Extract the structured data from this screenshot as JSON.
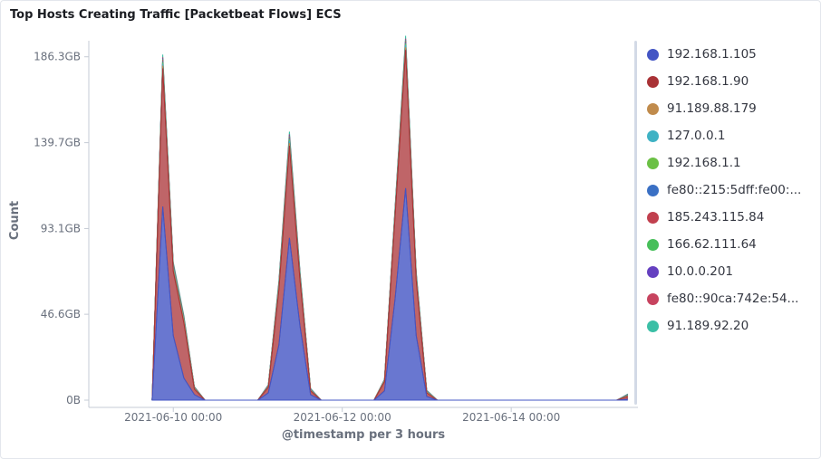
{
  "panel": {
    "title": "Top Hosts Creating Traffic [Packetbeat Flows] ECS"
  },
  "chart_data": {
    "type": "area",
    "stacked": true,
    "title": "Top Hosts Creating Traffic [Packetbeat Flows] ECS",
    "xlabel": "@timestamp per 3 hours",
    "ylabel": "Count",
    "x_axis": {
      "type": "time",
      "range": [
        "2021-06-09 00:00",
        "2021-06-15 12:00"
      ],
      "ticks": [
        {
          "value": "2021-06-10 00:00",
          "label": "2021-06-10 00:00"
        },
        {
          "value": "2021-06-12 00:00",
          "label": "2021-06-12 00:00"
        },
        {
          "value": "2021-06-14 00:00",
          "label": "2021-06-14 00:00"
        }
      ]
    },
    "y_axis": {
      "unit": "GB",
      "ylim": [
        0,
        195
      ],
      "ticks": [
        {
          "value": 0,
          "label": "0B"
        },
        {
          "value": 46.6,
          "label": "46.6GB"
        },
        {
          "value": 93.1,
          "label": "93.1GB"
        },
        {
          "value": 139.7,
          "label": "139.7GB"
        },
        {
          "value": 186.3,
          "label": "186.3GB"
        }
      ]
    },
    "grid": false,
    "legend_position": "right",
    "x": [
      "2021-06-09 18:00",
      "2021-06-09 21:00",
      "2021-06-10 00:00",
      "2021-06-10 03:00",
      "2021-06-10 06:00",
      "2021-06-10 09:00",
      "2021-06-10 12:00",
      "2021-06-10 15:00",
      "2021-06-10 18:00",
      "2021-06-10 21:00",
      "2021-06-11 00:00",
      "2021-06-11 03:00",
      "2021-06-11 06:00",
      "2021-06-11 09:00",
      "2021-06-11 12:00",
      "2021-06-11 15:00",
      "2021-06-11 18:00",
      "2021-06-11 21:00",
      "2021-06-12 00:00",
      "2021-06-12 03:00",
      "2021-06-12 06:00",
      "2021-06-12 09:00",
      "2021-06-12 12:00",
      "2021-06-12 15:00",
      "2021-06-12 18:00",
      "2021-06-12 21:00",
      "2021-06-13 00:00",
      "2021-06-13 03:00",
      "2021-06-13 06:00",
      "2021-06-13 09:00",
      "2021-06-13 12:00",
      "2021-06-13 15:00",
      "2021-06-13 18:00",
      "2021-06-13 21:00",
      "2021-06-14 00:00",
      "2021-06-14 03:00",
      "2021-06-14 06:00",
      "2021-06-14 09:00",
      "2021-06-14 12:00",
      "2021-06-14 15:00",
      "2021-06-14 18:00",
      "2021-06-14 21:00",
      "2021-06-15 00:00",
      "2021-06-15 03:00",
      "2021-06-15 06:00",
      "2021-06-15 09:00"
    ],
    "series": [
      {
        "name": "192.168.1.105",
        "color": "#4355c4",
        "values": [
          0,
          105,
          35,
          12,
          3,
          0,
          0,
          0,
          0,
          0,
          0,
          4,
          30,
          88,
          40,
          3,
          0,
          0,
          0,
          0,
          0,
          0,
          5,
          55,
          115,
          35,
          2,
          0,
          0,
          0,
          0,
          0,
          0,
          0,
          0,
          0,
          0,
          0,
          0,
          0,
          0,
          0,
          0,
          0,
          0,
          0.5
        ]
      },
      {
        "name": "192.168.1.90",
        "color": "#a93236",
        "values": [
          0,
          75,
          35,
          30,
          3,
          0,
          0,
          0,
          0,
          0,
          0,
          3,
          30,
          50,
          25,
          2,
          0,
          0,
          0,
          0,
          0,
          0,
          5,
          45,
          75,
          30,
          2,
          0,
          0,
          0,
          0,
          0,
          0,
          0,
          0,
          0,
          0,
          0,
          0,
          0,
          0,
          0,
          0,
          0,
          0,
          1.5
        ]
      },
      {
        "name": "91.189.88.179",
        "color": "#c08b4c",
        "values": [
          0,
          1.5,
          1,
          1,
          0.3,
          0,
          0,
          0,
          0,
          0,
          0,
          0.3,
          1,
          1.5,
          1,
          0.3,
          0,
          0,
          0,
          0,
          0,
          0,
          0.3,
          1,
          1.5,
          1,
          0.3,
          0,
          0,
          0,
          0,
          0,
          0,
          0,
          0,
          0,
          0,
          0,
          0,
          0,
          0,
          0,
          0,
          0,
          0,
          0.2
        ]
      },
      {
        "name": "127.0.0.1",
        "color": "#3fb2c4",
        "values": [
          0,
          1,
          0.8,
          0.6,
          0.2,
          0,
          0,
          0,
          0,
          0,
          0,
          0.2,
          0.8,
          1.2,
          0.8,
          0.2,
          0,
          0,
          0,
          0,
          0,
          0,
          0.2,
          0.8,
          1.2,
          0.8,
          0.2,
          0,
          0,
          0,
          0,
          0,
          0,
          0,
          0,
          0,
          0,
          0,
          0,
          0,
          0,
          0,
          0,
          0,
          0,
          0.2
        ]
      },
      {
        "name": "192.168.1.1",
        "color": "#6bc045",
        "values": [
          0,
          0.8,
          0.5,
          0.4,
          0.1,
          0,
          0,
          0,
          0,
          0,
          0,
          0.1,
          0.5,
          0.8,
          0.5,
          0.1,
          0,
          0,
          0,
          0,
          0,
          0,
          0.1,
          0.5,
          0.8,
          0.5,
          0.1,
          0,
          0,
          0,
          0,
          0,
          0,
          0,
          0,
          0,
          0,
          0,
          0,
          0,
          0,
          0,
          0,
          0,
          0,
          0.1
        ]
      },
      {
        "name": "fe80::215:5dff:fe00:...",
        "color": "#3a70c4",
        "values": [
          0,
          0.6,
          0.4,
          0.3,
          0.1,
          0,
          0,
          0,
          0,
          0,
          0,
          0.1,
          0.4,
          0.6,
          0.4,
          0.1,
          0,
          0,
          0,
          0,
          0,
          0,
          0.1,
          0.4,
          0.6,
          0.4,
          0.1,
          0,
          0,
          0,
          0,
          0,
          0,
          0,
          0,
          0,
          0,
          0,
          0,
          0,
          0,
          0,
          0,
          0,
          0,
          0.1
        ]
      },
      {
        "name": "185.243.115.84",
        "color": "#c1404e",
        "values": [
          0,
          0.6,
          0.4,
          0.3,
          0.1,
          0,
          0,
          0,
          0,
          0,
          0,
          0.1,
          0.4,
          0.6,
          0.4,
          0.1,
          0,
          0,
          0,
          0,
          0,
          0,
          0.1,
          0.4,
          0.6,
          0.4,
          0.1,
          0,
          0,
          0,
          0,
          0,
          0,
          0,
          0,
          0,
          0,
          0,
          0,
          0,
          0,
          0,
          0,
          0,
          0,
          0.1
        ]
      },
      {
        "name": "166.62.111.64",
        "color": "#47bf5a",
        "values": [
          0,
          0.5,
          0.3,
          0.2,
          0.1,
          0,
          0,
          0,
          0,
          0,
          0,
          0.1,
          0.3,
          0.5,
          0.3,
          0.1,
          0,
          0,
          0,
          0,
          0,
          0,
          0.1,
          0.3,
          0.5,
          0.3,
          0.1,
          0,
          0,
          0,
          0,
          0,
          0,
          0,
          0,
          0,
          0,
          0,
          0,
          0,
          0,
          0,
          0,
          0,
          0,
          0.1
        ]
      },
      {
        "name": "10.0.0.201",
        "color": "#6540c0",
        "values": [
          0,
          0.5,
          0.3,
          0.2,
          0.1,
          0,
          0,
          0,
          0,
          0,
          0,
          0.1,
          0.3,
          0.5,
          0.3,
          0.1,
          0,
          0,
          0,
          0,
          0,
          0,
          0.1,
          0.3,
          0.5,
          0.3,
          0.1,
          0,
          0,
          0,
          0,
          0,
          0,
          0,
          0,
          0,
          0,
          0,
          0,
          0,
          0,
          0,
          0,
          0,
          0,
          0.1
        ]
      },
      {
        "name": "fe80::90ca:742e:54...",
        "color": "#c7435f",
        "values": [
          0,
          0.5,
          0.3,
          0.2,
          0.1,
          0,
          0,
          0,
          0,
          0,
          0,
          0.1,
          0.3,
          0.5,
          0.3,
          0.1,
          0,
          0,
          0,
          0,
          0,
          0,
          0.1,
          0.3,
          0.5,
          0.3,
          0.1,
          0,
          0,
          0,
          0,
          0,
          0,
          0,
          0,
          0,
          0,
          0,
          0,
          0,
          0,
          0,
          0,
          0,
          0,
          0.1
        ]
      },
      {
        "name": "91.189.92.20",
        "color": "#3bbfa6",
        "values": [
          0,
          1.5,
          1,
          0.8,
          0.3,
          0,
          0,
          0,
          0,
          0,
          0,
          0.3,
          1,
          1.5,
          1,
          0.3,
          0,
          0,
          0,
          0,
          0,
          0,
          0.3,
          1,
          1.5,
          1,
          0.3,
          0,
          0,
          0,
          0,
          0,
          0,
          0,
          0,
          0,
          0,
          0,
          0,
          0,
          0,
          0,
          0,
          0,
          0,
          0.2
        ]
      }
    ]
  }
}
